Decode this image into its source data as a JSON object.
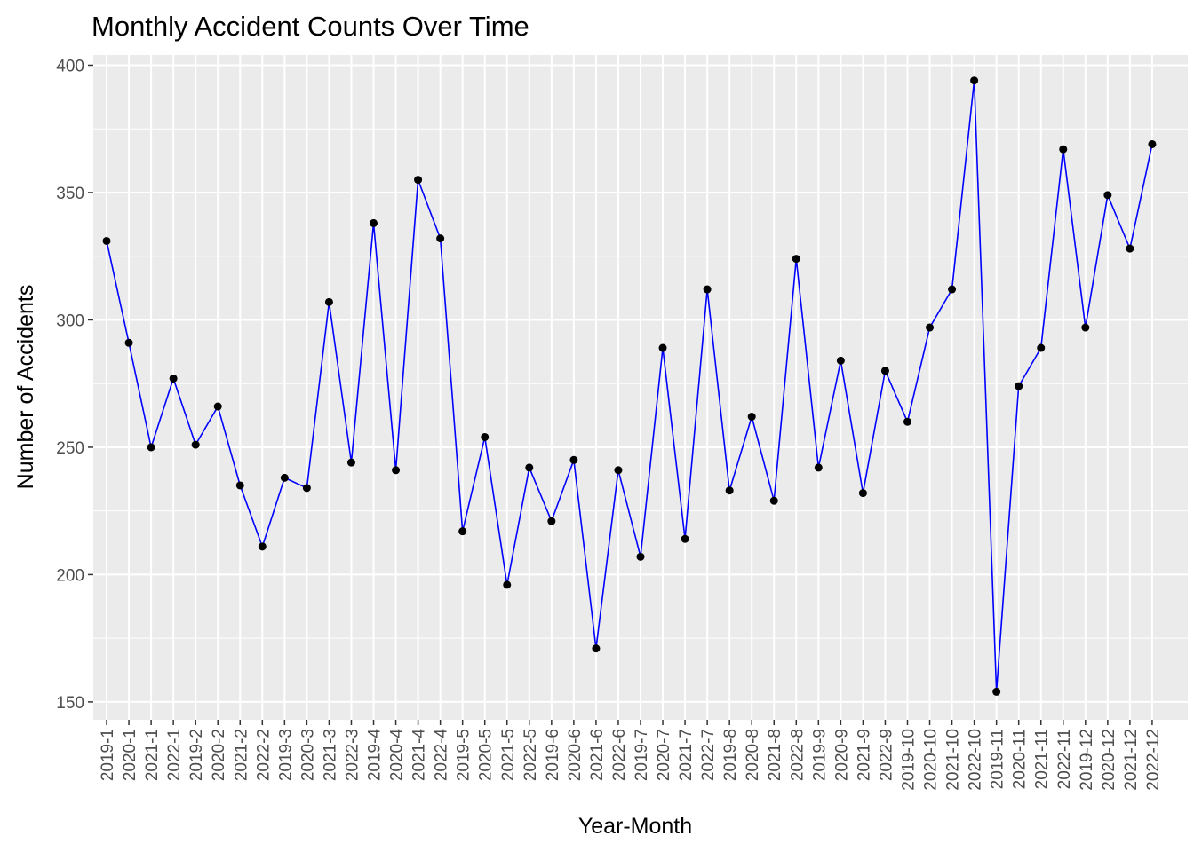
{
  "chart_data": {
    "type": "line",
    "title": "Monthly Accident Counts Over Time",
    "xlabel": "Year-Month",
    "ylabel": "Number of Accidents",
    "ylim": [
      143,
      404
    ],
    "yticks": [
      150,
      200,
      250,
      300,
      350,
      400
    ],
    "ytick_labels": [
      "150",
      "200",
      "250",
      "300",
      "350",
      "400"
    ],
    "grid": true,
    "legend": "none",
    "line_color": "#0000ff",
    "point_color": "#000000",
    "panel_background": "#ebebeb",
    "grid_color": "#ffffff",
    "categories": [
      "2019-1",
      "2020-1",
      "2021-1",
      "2022-1",
      "2019-2",
      "2020-2",
      "2021-2",
      "2022-2",
      "2019-3",
      "2020-3",
      "2021-3",
      "2022-3",
      "2019-4",
      "2020-4",
      "2021-4",
      "2022-4",
      "2019-5",
      "2020-5",
      "2021-5",
      "2022-5",
      "2019-6",
      "2020-6",
      "2021-6",
      "2022-6",
      "2019-7",
      "2020-7",
      "2021-7",
      "2022-7",
      "2019-8",
      "2020-8",
      "2021-8",
      "2022-8",
      "2019-9",
      "2020-9",
      "2021-9",
      "2022-9",
      "2019-10",
      "2020-10",
      "2021-10",
      "2022-10",
      "2019-11",
      "2020-11",
      "2021-11",
      "2022-11",
      "2019-12",
      "2020-12",
      "2021-12",
      "2022-12"
    ],
    "values": [
      331,
      291,
      250,
      277,
      251,
      266,
      235,
      211,
      238,
      234,
      307,
      244,
      338,
      241,
      355,
      332,
      217,
      254,
      196,
      242,
      221,
      245,
      171,
      241,
      207,
      289,
      214,
      312,
      233,
      262,
      229,
      324,
      242,
      284,
      232,
      280,
      260,
      297,
      312,
      394,
      154,
      274,
      289,
      367,
      297,
      349,
      328,
      369
    ]
  }
}
